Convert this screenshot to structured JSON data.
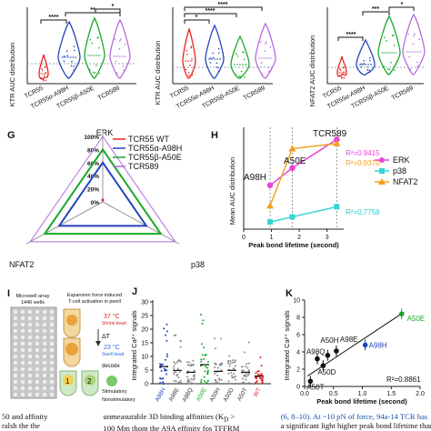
{
  "colors": {
    "tcr55": "#e8231f",
    "a98h": "#2344b8",
    "b_a50e": "#19a82a",
    "tcr589": "#b46be0",
    "erk": "#ea45d8",
    "p38": "#35d5d5",
    "nfat2": "#f0a020",
    "grey": "#8c8c8c",
    "micro_bg": "#c7c7c7",
    "cyan_note": "#34c6c8"
  },
  "panels": {
    "top": {
      "labels": [
        "TCR55",
        "TCR55α-A98H",
        "TCR55β-A50E",
        "TCR589"
      ],
      "plot1": {
        "ylabel": "KTR AUC distribution",
        "sig": [
          "****",
          "**",
          "*"
        ]
      },
      "plot2": {
        "ylabel": "KTR AUC distribution",
        "sig": [
          "*",
          "****",
          "****"
        ]
      },
      "plot3": {
        "ylabel": "NFAT2 AUC distribution",
        "sig": [
          "****",
          "***",
          "*"
        ]
      }
    },
    "G": {
      "letter": "G",
      "axes": [
        "ERK",
        "NFAT2",
        "p38"
      ],
      "ticks": [
        "100%",
        "80%",
        "60%",
        "40%",
        "20%",
        "0%"
      ],
      "legend": [
        "TCR55 WT",
        "TCR55α-A98H",
        "TCR55β-A50E",
        "TCR589"
      ]
    },
    "H": {
      "letter": "H",
      "ylabel": "Mean AUC distribution",
      "xlabel": "Peak bond lifetime (second)",
      "xticks": [
        "0",
        "1",
        "2",
        "3"
      ],
      "point_labels": [
        "A98H",
        "A50E",
        "TCR589"
      ],
      "r2": [
        "R²=0.9415",
        "R²=0.9370",
        "R²=0.7758"
      ],
      "legend": [
        "ERK",
        "p38",
        "NFAT2"
      ]
    },
    "I": {
      "letter": "I",
      "microwell": [
        "Microwell array",
        "1440 wells"
      ],
      "expansion": [
        "Expansion force induced",
        "T-cell activation in pwell"
      ],
      "t37": [
        "37 °C",
        "Shrink bead"
      ],
      "delta": "ΔT",
      "t23": [
        "23 °C",
        "Swell bead"
      ],
      "decode": "decode",
      "steps": [
        "1",
        "2",
        "3"
      ],
      "outcomes": [
        "Stimulatory",
        "Nonstimulatory"
      ]
    },
    "J": {
      "letter": "J",
      "ylabel": "Integrated Ca²⁺ signals",
      "yticks": [
        "0",
        "5",
        "10",
        "15",
        "20",
        "25",
        "30"
      ],
      "categories": [
        "A98H",
        "A98E",
        "A98Q",
        "A50E",
        "A50H",
        "A50D",
        "A50T",
        "WT"
      ]
    },
    "K": {
      "letter": "K",
      "ylabel": "Integrated Ca²⁺ signals",
      "xlabel": "Peak bond lifetime (second)",
      "xticks": [
        "0.0",
        "0.5",
        "1.0",
        "1.5",
        "2.0"
      ],
      "yticks": [
        "0",
        "2",
        "4",
        "6",
        "8",
        "10"
      ],
      "point_labels": [
        "A50E",
        "A50H",
        "A98E",
        "A98Q",
        "A98H",
        "A50D",
        "A50T"
      ],
      "r2": "R²=0.8861"
    }
  },
  "caption": {
    "left": "50 and affinity",
    "left2": "ralsh the the",
    "middle": "unmeasurable 3D binding affinities (K",
    "middle_sub": "D",
    "middle_end": " >",
    "middle2": "100 Mm thom the A9A effinity fos TFFRM",
    "right": "(6, 8–10). At ~10 pN of force, 94a-14 TCR has",
    "right2": "a significant light higher peak bond lifetime than"
  },
  "chart_data": [
    {
      "type": "scatter",
      "title": "",
      "xlabel": "Peak bond lifetime (second)",
      "ylabel": "Mean AUC distribution",
      "xlim": [
        0,
        3.6
      ],
      "series": [
        {
          "name": "ERK",
          "x": [
            0.95,
            1.75,
            3.35
          ],
          "y": [
            0.43,
            0.6,
            0.88
          ]
        },
        {
          "name": "p38",
          "x": [
            0.95,
            1.75,
            3.35
          ],
          "y": [
            0.07,
            0.12,
            0.22
          ]
        },
        {
          "name": "NFAT2",
          "x": [
            0.95,
            1.75,
            3.35
          ],
          "y": [
            0.23,
            0.79,
            0.84
          ]
        }
      ],
      "annotations": [
        "R²=0.9415",
        "R²=0.9370",
        "R²=0.7758"
      ]
    },
    {
      "type": "scatter",
      "title": "",
      "xlabel": "Peak bond lifetime (second)",
      "ylabel": "Integrated Ca²⁺ signals",
      "xlim": [
        0,
        2.0
      ],
      "ylim": [
        0,
        10
      ],
      "points": [
        {
          "label": "A50T",
          "x": 0.1,
          "y": 0.6
        },
        {
          "label": "A50D",
          "x": 0.32,
          "y": 2.4
        },
        {
          "label": "A98Q",
          "x": 0.22,
          "y": 3.2
        },
        {
          "label": "A50H",
          "x": 0.4,
          "y": 3.6
        },
        {
          "label": "A98E",
          "x": 0.55,
          "y": 4.1
        },
        {
          "label": "A98H",
          "x": 1.05,
          "y": 4.8
        },
        {
          "label": "A50E",
          "x": 1.68,
          "y": 8.4
        }
      ],
      "annotations": [
        "R²=0.8861"
      ]
    },
    {
      "type": "radar",
      "title": "",
      "axes": [
        "ERK",
        "NFAT2",
        "p38"
      ],
      "ticks": [
        "100%",
        "80%",
        "60%",
        "40%",
        "20%",
        "0%"
      ],
      "series": [
        {
          "name": "TCR55 WT",
          "values": [
            0.02,
            0.02,
            0.02
          ]
        },
        {
          "name": "TCR55α-A98H",
          "values": [
            0.6,
            0.6,
            0.6
          ]
        },
        {
          "name": "TCR55β-A50E",
          "values": [
            0.8,
            0.8,
            0.8
          ]
        },
        {
          "name": "TCR589",
          "values": [
            1.0,
            1.0,
            1.0
          ]
        }
      ]
    }
  ]
}
